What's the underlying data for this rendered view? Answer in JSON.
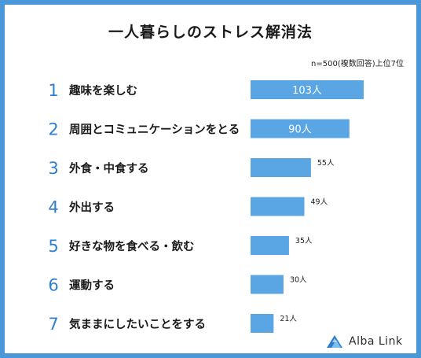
{
  "title": "一人暮らしのストレス解消法",
  "note": "n=500(複数回答)上位7位",
  "brand": {
    "name": "Alba Link",
    "icon": "mountain-logo-icon"
  },
  "colors": {
    "frame": "#4a97d9",
    "bar": "#5aa5e4",
    "rank": "#2f7fcf",
    "text": "#1a1a1a"
  },
  "chart_data": {
    "type": "bar",
    "orientation": "horizontal",
    "title": "一人暮らしのストレス解消法",
    "unit": "人",
    "categories": [
      "趣味を楽しむ",
      "周囲とコミュニケーションをとる",
      "外食・中食する",
      "外出する",
      "好きな物を食べる・飲む",
      "運動する",
      "気ままにしたいことをする"
    ],
    "ranks": [
      "1",
      "2",
      "3",
      "4",
      "5",
      "6",
      "7"
    ],
    "values": [
      103,
      90,
      55,
      49,
      35,
      30,
      21
    ],
    "value_labels": [
      "103人",
      "90人",
      "55人",
      "49人",
      "35人",
      "30人",
      "21人"
    ],
    "label_inside": [
      true,
      true,
      false,
      false,
      false,
      false,
      false
    ]
  }
}
